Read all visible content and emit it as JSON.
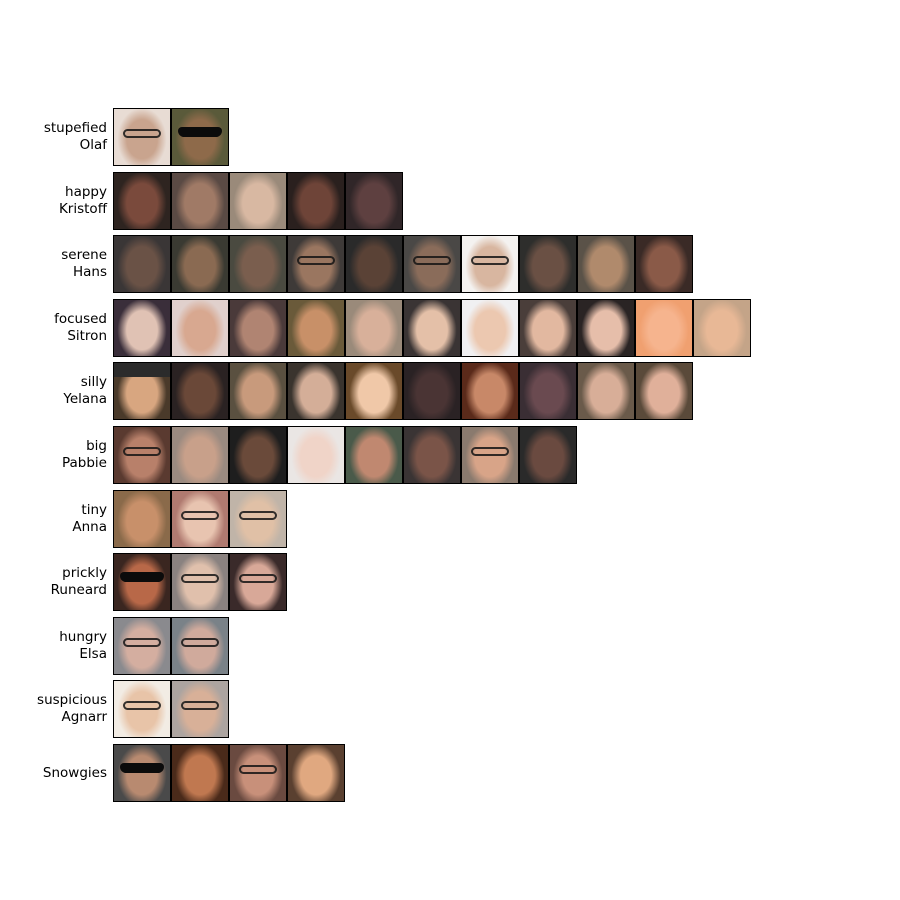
{
  "clusters": [
    {
      "label": [
        "stupefied",
        "Olaf"
      ],
      "faces": [
        {
          "tone": "#c9a48e",
          "bg": "#e8dcd4",
          "accessory": "glasses"
        },
        {
          "tone": "#8e6a4a",
          "bg": "#5a5a3a",
          "accessory": "sunglasses"
        }
      ]
    },
    {
      "label": [
        "happy",
        "Kristoff"
      ],
      "faces": [
        {
          "tone": "#7a4a3c",
          "bg": "#2e2420",
          "accessory": "none"
        },
        {
          "tone": "#a07a66",
          "bg": "#5a4a44",
          "accessory": "none"
        },
        {
          "tone": "#d8b8a2",
          "bg": "#9a8a7a",
          "accessory": "none"
        },
        {
          "tone": "#6e4438",
          "bg": "#2a201e",
          "accessory": "none"
        },
        {
          "tone": "#5e4040",
          "bg": "#302628",
          "accessory": "none"
        }
      ]
    },
    {
      "label": [
        "serene",
        "Hans"
      ],
      "faces": [
        {
          "tone": "#6a5246",
          "bg": "#3a3636",
          "accessory": "none"
        },
        {
          "tone": "#8a6a52",
          "bg": "#3a3a32",
          "accessory": "none"
        },
        {
          "tone": "#7a5e4e",
          "bg": "#4a4a40",
          "accessory": "none"
        },
        {
          "tone": "#9a7660",
          "bg": "#3e3a38",
          "accessory": "glasses"
        },
        {
          "tone": "#5a4236",
          "bg": "#2a2a2a",
          "accessory": "none"
        },
        {
          "tone": "#8a6c5a",
          "bg": "#4a4846",
          "accessory": "glasses"
        },
        {
          "tone": "#d8b6a0",
          "bg": "#f4f2f0",
          "accessory": "glasses"
        },
        {
          "tone": "#6a5044",
          "bg": "#2e2e2c",
          "accessory": "none"
        },
        {
          "tone": "#b08a6c",
          "bg": "#5a5248",
          "accessory": "none"
        },
        {
          "tone": "#8a5a48",
          "bg": "#3a2a26",
          "accessory": "none"
        }
      ]
    },
    {
      "label": [
        "focused",
        "Sitron"
      ],
      "faces": [
        {
          "tone": "#e0c2b4",
          "bg": "#3a2e3a",
          "accessory": "none"
        },
        {
          "tone": "#d8a890",
          "bg": "#e0d0cc",
          "accessory": "none"
        },
        {
          "tone": "#b08472",
          "bg": "#4a3a3a",
          "accessory": "none"
        },
        {
          "tone": "#c89068",
          "bg": "#6a5a3a",
          "accessory": "none"
        },
        {
          "tone": "#d8b09a",
          "bg": "#9a8a7a",
          "accessory": "none"
        },
        {
          "tone": "#e4c0a8",
          "bg": "#3a3434",
          "accessory": "none"
        },
        {
          "tone": "#ecc8b0",
          "bg": "#f0f0f2",
          "accessory": "none"
        },
        {
          "tone": "#e2b8a0",
          "bg": "#4a3e3a",
          "accessory": "none"
        },
        {
          "tone": "#e6beaa",
          "bg": "#2a2424",
          "accessory": "none"
        },
        {
          "tone": "#f6b48e",
          "bg": "#f0a070",
          "accessory": "none"
        },
        {
          "tone": "#e8b896",
          "bg": "#c4a488",
          "accessory": "none"
        }
      ]
    },
    {
      "label": [
        "silly",
        "Yelana"
      ],
      "faces": [
        {
          "tone": "#d8a680",
          "bg": "#4a3a2a",
          "accessory": "cap"
        },
        {
          "tone": "#6a4838",
          "bg": "#2a2222",
          "accessory": "none"
        },
        {
          "tone": "#c89a7c",
          "bg": "#5a5040",
          "accessory": "none"
        },
        {
          "tone": "#d4ae98",
          "bg": "#3a342e",
          "accessory": "none"
        },
        {
          "tone": "#f0c8a8",
          "bg": "#6a4a2a",
          "accessory": "none"
        },
        {
          "tone": "#4a3434",
          "bg": "#2a2224",
          "accessory": "none"
        },
        {
          "tone": "#c88868",
          "bg": "#5a2a1a",
          "accessory": "none"
        },
        {
          "tone": "#6a4a50",
          "bg": "#3a2e34",
          "accessory": "none"
        },
        {
          "tone": "#d8ae98",
          "bg": "#6a5a4a",
          "accessory": "none"
        },
        {
          "tone": "#e0b09a",
          "bg": "#5a4a3a",
          "accessory": "none"
        }
      ]
    },
    {
      "label": [
        "big",
        "Pabbie"
      ],
      "faces": [
        {
          "tone": "#b8806a",
          "bg": "#5a3a30",
          "accessory": "glasses"
        },
        {
          "tone": "#c8a08a",
          "bg": "#9a8a80",
          "accessory": "none"
        },
        {
          "tone": "#6a4a3a",
          "bg": "#1e1e1e",
          "accessory": "none"
        },
        {
          "tone": "#f0d4c8",
          "bg": "#eae6e4",
          "accessory": "none"
        },
        {
          "tone": "#c08870",
          "bg": "#4a5a4a",
          "accessory": "none"
        },
        {
          "tone": "#7a5448",
          "bg": "#3a3434",
          "accessory": "none"
        },
        {
          "tone": "#d8a488",
          "bg": "#8a7a6e",
          "accessory": "glasses"
        },
        {
          "tone": "#6a4a40",
          "bg": "#2a2a2a",
          "accessory": "none"
        }
      ]
    },
    {
      "label": [
        "tiny",
        "Anna"
      ],
      "faces": [
        {
          "tone": "#c8906a",
          "bg": "#8a6a4a",
          "accessory": "none"
        },
        {
          "tone": "#e8c4b0",
          "bg": "#b07a70",
          "accessory": "glasses"
        },
        {
          "tone": "#e0c0a6",
          "bg": "#c0b4a8",
          "accessory": "glasses"
        }
      ]
    },
    {
      "label": [
        "prickly",
        "Runeard"
      ],
      "faces": [
        {
          "tone": "#b86848",
          "bg": "#3a2620",
          "accessory": "sunglasses"
        },
        {
          "tone": "#e0c0ac",
          "bg": "#8a8280",
          "accessory": "glasses"
        },
        {
          "tone": "#d8a898",
          "bg": "#3a2a2a",
          "accessory": "glasses"
        }
      ]
    },
    {
      "label": [
        "hungry",
        "Elsa"
      ],
      "faces": [
        {
          "tone": "#d4aea0",
          "bg": "#8a8a8e",
          "accessory": "glasses"
        },
        {
          "tone": "#d0aa9c",
          "bg": "#7a8288",
          "accessory": "glasses"
        }
      ]
    },
    {
      "label": [
        "suspicious",
        "Agnarr"
      ],
      "faces": [
        {
          "tone": "#e8c4a8",
          "bg": "#f2ece4",
          "accessory": "glasses"
        },
        {
          "tone": "#d8b098",
          "bg": "#aca4a0",
          "accessory": "glasses"
        }
      ]
    },
    {
      "label": [
        "Snowgies"
      ],
      "faces": [
        {
          "tone": "#b88a70",
          "bg": "#4a4a4a",
          "accessory": "sunglasses"
        },
        {
          "tone": "#c07850",
          "bg": "#4a2a1a",
          "accessory": "none"
        },
        {
          "tone": "#c8907a",
          "bg": "#6a4a40",
          "accessory": "glasses"
        },
        {
          "tone": "#e0a880",
          "bg": "#5a4030",
          "accessory": "none"
        }
      ]
    }
  ]
}
